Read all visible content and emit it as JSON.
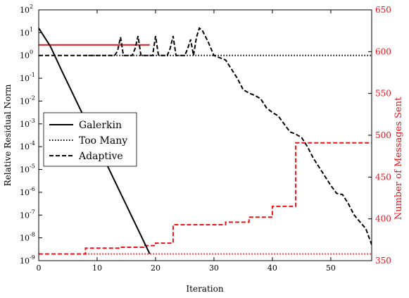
{
  "chart_data": {
    "type": "line",
    "xlabel": "Iteration",
    "ylabel": "Relative Residual Norm",
    "y2label": "Number of Messages Sent",
    "xlim": [
      0,
      57
    ],
    "ylim_log10": [
      -9,
      2
    ],
    "y2lim": [
      350,
      650
    ],
    "y_scale": "log",
    "x_ticks": [
      0,
      10,
      20,
      30,
      40,
      50
    ],
    "y_tick_exponents": [
      -9,
      -8,
      -7,
      -6,
      -5,
      -4,
      -3,
      -2,
      -1,
      0,
      1,
      2
    ],
    "y_tick_base": "10",
    "y2_ticks": [
      350,
      400,
      450,
      500,
      550,
      600,
      650
    ],
    "grid": false,
    "legend_placement": "center-left",
    "legend": [
      {
        "label": "Galerkin",
        "style": "solid"
      },
      {
        "label": "Too Many",
        "style": "dotted"
      },
      {
        "label": "Adaptive",
        "style": "dashed"
      }
    ],
    "colors": {
      "residual": "#000000",
      "messages": "#e8141b"
    },
    "residual_series": [
      {
        "style": "solid",
        "points": [
          [
            0,
            1.2
          ],
          [
            2,
            0.4
          ],
          [
            4,
            -0.7
          ],
          [
            19,
            -8.7
          ]
        ]
      },
      {
        "style": "dotted",
        "points": [
          [
            8,
            0.0
          ],
          [
            57,
            0.0
          ]
        ]
      },
      {
        "style": "dashed",
        "points": [
          [
            0,
            0.0
          ],
          [
            13,
            0.0
          ],
          [
            13.5,
            0.2
          ],
          [
            14,
            0.8
          ],
          [
            14.5,
            0.0
          ],
          [
            16,
            0.0
          ],
          [
            16.5,
            0.3
          ],
          [
            17,
            0.85
          ],
          [
            17.5,
            0.0
          ],
          [
            19.5,
            0.0
          ],
          [
            20,
            0.85
          ],
          [
            20.5,
            0.0
          ],
          [
            22,
            0.0
          ],
          [
            22.5,
            0.3
          ],
          [
            23,
            0.85
          ],
          [
            23.5,
            0.0
          ],
          [
            25,
            0.0
          ],
          [
            25.5,
            0.3
          ],
          [
            26,
            0.7
          ],
          [
            26.5,
            0.0
          ],
          [
            27,
            0.8
          ],
          [
            27.5,
            1.2
          ],
          [
            28,
            1.1
          ],
          [
            29,
            0.6
          ],
          [
            30,
            0.0
          ],
          [
            31,
            -0.1
          ],
          [
            32,
            -0.2
          ],
          [
            33,
            -0.6
          ],
          [
            34,
            -1.0
          ],
          [
            35,
            -1.5
          ],
          [
            36,
            -1.65
          ],
          [
            37,
            -1.75
          ],
          [
            38,
            -1.9
          ],
          [
            39,
            -2.3
          ],
          [
            40,
            -2.5
          ],
          [
            41,
            -2.65
          ],
          [
            42,
            -3.0
          ],
          [
            43,
            -3.35
          ],
          [
            44,
            -3.45
          ],
          [
            45,
            -3.6
          ],
          [
            46,
            -4.0
          ],
          [
            47,
            -4.5
          ],
          [
            48,
            -4.9
          ],
          [
            49,
            -5.3
          ],
          [
            50,
            -5.7
          ],
          [
            51,
            -6.05
          ],
          [
            52,
            -6.1
          ],
          [
            53,
            -6.5
          ],
          [
            54,
            -7.0
          ],
          [
            55,
            -7.3
          ],
          [
            56,
            -7.6
          ],
          [
            57,
            -8.3
          ]
        ]
      }
    ],
    "messages_series": [
      {
        "style": "solid",
        "points": [
          [
            0,
            608
          ],
          [
            19,
            608
          ]
        ]
      },
      {
        "style": "dotted",
        "points": [
          [
            8,
            358
          ],
          [
            57,
            358
          ]
        ]
      },
      {
        "style": "dashed",
        "points": [
          [
            0,
            358
          ],
          [
            8,
            358
          ],
          [
            8,
            365
          ],
          [
            14,
            365
          ],
          [
            14,
            366
          ],
          [
            18,
            366
          ],
          [
            18,
            368
          ],
          [
            20,
            368
          ],
          [
            20,
            371
          ],
          [
            23,
            371
          ],
          [
            23,
            393
          ],
          [
            29,
            393
          ],
          [
            32,
            393
          ],
          [
            32,
            396
          ],
          [
            36,
            396
          ],
          [
            36,
            402
          ],
          [
            40,
            402
          ],
          [
            40,
            415
          ],
          [
            44,
            415
          ],
          [
            44,
            491
          ],
          [
            57,
            491
          ]
        ]
      }
    ]
  }
}
